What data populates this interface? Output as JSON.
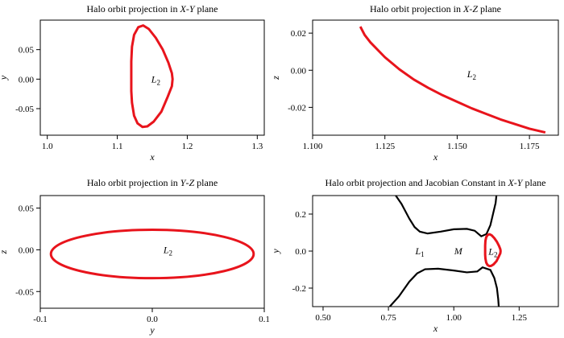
{
  "colors": {
    "orbit": "#e8141c",
    "zero_velocity_curve": "#000000",
    "axes": "#000000"
  },
  "chart_data": [
    {
      "type": "line",
      "title": "Halo orbit projection in X-Y plane",
      "title_parts": [
        {
          "t": "Halo orbit projection in "
        },
        {
          "t": "X",
          "i": true
        },
        {
          "t": "-"
        },
        {
          "t": "Y",
          "i": true
        },
        {
          "t": " plane"
        }
      ],
      "xlabel": "x",
      "ylabel": "y",
      "xlim": [
        0.99,
        1.31
      ],
      "ylim": [
        -0.095,
        0.1
      ],
      "xticks": [
        1.0,
        1.1,
        1.2,
        1.3
      ],
      "xticklabels": [
        "1.0",
        "1.1",
        "1.2",
        "1.3"
      ],
      "yticks": [
        -0.05,
        0.0,
        0.05
      ],
      "yticklabels": [
        "-0.05",
        "0.00",
        "0.05"
      ],
      "annotations": [
        {
          "text": "L",
          "sub": "2",
          "x": 1.155,
          "y": 0.0
        }
      ],
      "series": [
        {
          "points": [
            [
              1.12,
              0.0
            ],
            [
              1.12,
              0.03
            ],
            [
              1.121,
              0.055
            ],
            [
              1.124,
              0.075
            ],
            [
              1.13,
              0.088
            ],
            [
              1.137,
              0.091
            ],
            [
              1.145,
              0.085
            ],
            [
              1.155,
              0.07
            ],
            [
              1.165,
              0.05
            ],
            [
              1.173,
              0.028
            ],
            [
              1.178,
              0.01
            ],
            [
              1.179,
              0.0
            ],
            [
              1.178,
              -0.012
            ],
            [
              1.172,
              -0.03
            ],
            [
              1.163,
              -0.055
            ],
            [
              1.152,
              -0.072
            ],
            [
              1.143,
              -0.08
            ],
            [
              1.136,
              -0.081
            ],
            [
              1.129,
              -0.075
            ],
            [
              1.124,
              -0.062
            ],
            [
              1.121,
              -0.04
            ],
            [
              1.12,
              -0.02
            ],
            [
              1.12,
              0.0
            ]
          ]
        }
      ]
    },
    {
      "type": "line",
      "title": "Halo orbit projection in X-Z plane",
      "title_parts": [
        {
          "t": "Halo orbit projection in "
        },
        {
          "t": "X",
          "i": true
        },
        {
          "t": "-"
        },
        {
          "t": "Z",
          "i": true
        },
        {
          "t": " plane"
        }
      ],
      "xlabel": "x",
      "ylabel": "z",
      "xlim": [
        1.1,
        1.185
      ],
      "ylim": [
        -0.035,
        0.027
      ],
      "xticks": [
        1.1,
        1.125,
        1.15,
        1.175
      ],
      "xticklabels": [
        "1.100",
        "1.125",
        "1.150",
        "1.175"
      ],
      "yticks": [
        -0.02,
        0.0,
        0.02
      ],
      "yticklabels": [
        "-0.02",
        "0.00",
        "0.02"
      ],
      "annotations": [
        {
          "text": "L",
          "sub": "2",
          "x": 1.155,
          "y": -0.002
        }
      ],
      "series": [
        {
          "points": [
            [
              1.1165,
              0.0235
            ],
            [
              1.118,
              0.019
            ],
            [
              1.12,
              0.015
            ],
            [
              1.125,
              0.007
            ],
            [
              1.13,
              0.0005
            ],
            [
              1.135,
              -0.005
            ],
            [
              1.14,
              -0.0095
            ],
            [
              1.145,
              -0.0135
            ],
            [
              1.15,
              -0.017
            ],
            [
              1.155,
              -0.0205
            ],
            [
              1.16,
              -0.0235
            ],
            [
              1.165,
              -0.0265
            ],
            [
              1.17,
              -0.029
            ],
            [
              1.175,
              -0.0315
            ],
            [
              1.1805,
              -0.0335
            ]
          ]
        }
      ]
    },
    {
      "type": "line",
      "title": "Halo orbit projection in Y-Z plane",
      "title_parts": [
        {
          "t": "Halo orbit projection in "
        },
        {
          "t": "Y",
          "i": true
        },
        {
          "t": "-"
        },
        {
          "t": "Z",
          "i": true
        },
        {
          "t": " plane"
        }
      ],
      "xlabel": "y",
      "ylabel": "z",
      "xlim": [
        -0.1,
        0.1
      ],
      "ylim": [
        -0.07,
        0.065
      ],
      "xticks": [
        -0.1,
        0.0,
        0.1
      ],
      "xticklabels": [
        "-0.1",
        "0.0",
        "0.1"
      ],
      "yticks": [
        -0.05,
        0.0,
        0.05
      ],
      "yticklabels": [
        "-0.05",
        "0.00",
        "0.05"
      ],
      "annotations": [
        {
          "text": "L",
          "sub": "2",
          "x": 0.014,
          "y": 0.0
        }
      ],
      "series": [
        {
          "ellipse": {
            "cx": 0.0,
            "cy": -0.005,
            "rx": 0.0905,
            "ry": 0.029
          }
        }
      ]
    },
    {
      "type": "line",
      "title": "Halo orbit projection and Jacobian Constant in X-Y plane",
      "title_parts": [
        {
          "t": "Halo orbit projection and Jacobian Constant in "
        },
        {
          "t": "X",
          "i": true
        },
        {
          "t": "-"
        },
        {
          "t": "Y",
          "i": true
        },
        {
          "t": " plane"
        }
      ],
      "xlabel": "x",
      "ylabel": "y",
      "xlim": [
        0.46,
        1.4
      ],
      "ylim": [
        -0.3,
        0.3
      ],
      "xticks": [
        0.5,
        0.75,
        1.0,
        1.25
      ],
      "xticklabels": [
        "0.50",
        "0.75",
        "1.00",
        "1.25"
      ],
      "yticks": [
        -0.2,
        0.0,
        0.2
      ],
      "yticklabels": [
        "-0.2",
        "0.0",
        "0.2"
      ],
      "annotations": [
        {
          "text": "L",
          "sub": "1",
          "x": 0.87,
          "y": 0.0
        },
        {
          "text": "M",
          "sub": "",
          "x": 1.017,
          "y": 0.0
        },
        {
          "text": "L",
          "sub": "2",
          "x": 1.15,
          "y": -0.003
        }
      ],
      "series": [
        {
          "kind": "zero-velocity",
          "points": [
            [
              0.778,
              0.3
            ],
            [
              0.8,
              0.255
            ],
            [
              0.83,
              0.175
            ],
            [
              0.85,
              0.13
            ],
            [
              0.87,
              0.105
            ],
            [
              0.9,
              0.095
            ],
            [
              0.95,
              0.105
            ],
            [
              1.0,
              0.118
            ],
            [
              1.05,
              0.12
            ],
            [
              1.08,
              0.11
            ],
            [
              1.105,
              0.08
            ],
            [
              1.125,
              0.092
            ],
            [
              1.14,
              0.14
            ],
            [
              1.15,
              0.2
            ],
            [
              1.16,
              0.26
            ],
            [
              1.163,
              0.3
            ]
          ]
        },
        {
          "kind": "zero-velocity",
          "points": [
            [
              0.755,
              -0.3
            ],
            [
              0.79,
              -0.245
            ],
            [
              0.83,
              -0.165
            ],
            [
              0.86,
              -0.12
            ],
            [
              0.89,
              -0.098
            ],
            [
              0.94,
              -0.095
            ],
            [
              1.0,
              -0.105
            ],
            [
              1.05,
              -0.115
            ],
            [
              1.09,
              -0.11
            ],
            [
              1.11,
              -0.088
            ],
            [
              1.14,
              -0.102
            ],
            [
              1.155,
              -0.145
            ],
            [
              1.165,
              -0.2
            ],
            [
              1.17,
              -0.26
            ],
            [
              1.172,
              -0.3
            ]
          ]
        },
        {
          "kind": "orbit",
          "points": [
            [
              1.12,
              0.0
            ],
            [
              1.12,
              0.03
            ],
            [
              1.121,
              0.055
            ],
            [
              1.124,
              0.075
            ],
            [
              1.13,
              0.088
            ],
            [
              1.137,
              0.091
            ],
            [
              1.145,
              0.085
            ],
            [
              1.155,
              0.07
            ],
            [
              1.165,
              0.05
            ],
            [
              1.173,
              0.028
            ],
            [
              1.178,
              0.01
            ],
            [
              1.179,
              0.0
            ],
            [
              1.178,
              -0.012
            ],
            [
              1.172,
              -0.03
            ],
            [
              1.163,
              -0.055
            ],
            [
              1.152,
              -0.072
            ],
            [
              1.143,
              -0.08
            ],
            [
              1.136,
              -0.081
            ],
            [
              1.129,
              -0.075
            ],
            [
              1.124,
              -0.062
            ],
            [
              1.121,
              -0.04
            ],
            [
              1.12,
              -0.02
            ],
            [
              1.12,
              0.0
            ]
          ]
        }
      ]
    }
  ]
}
